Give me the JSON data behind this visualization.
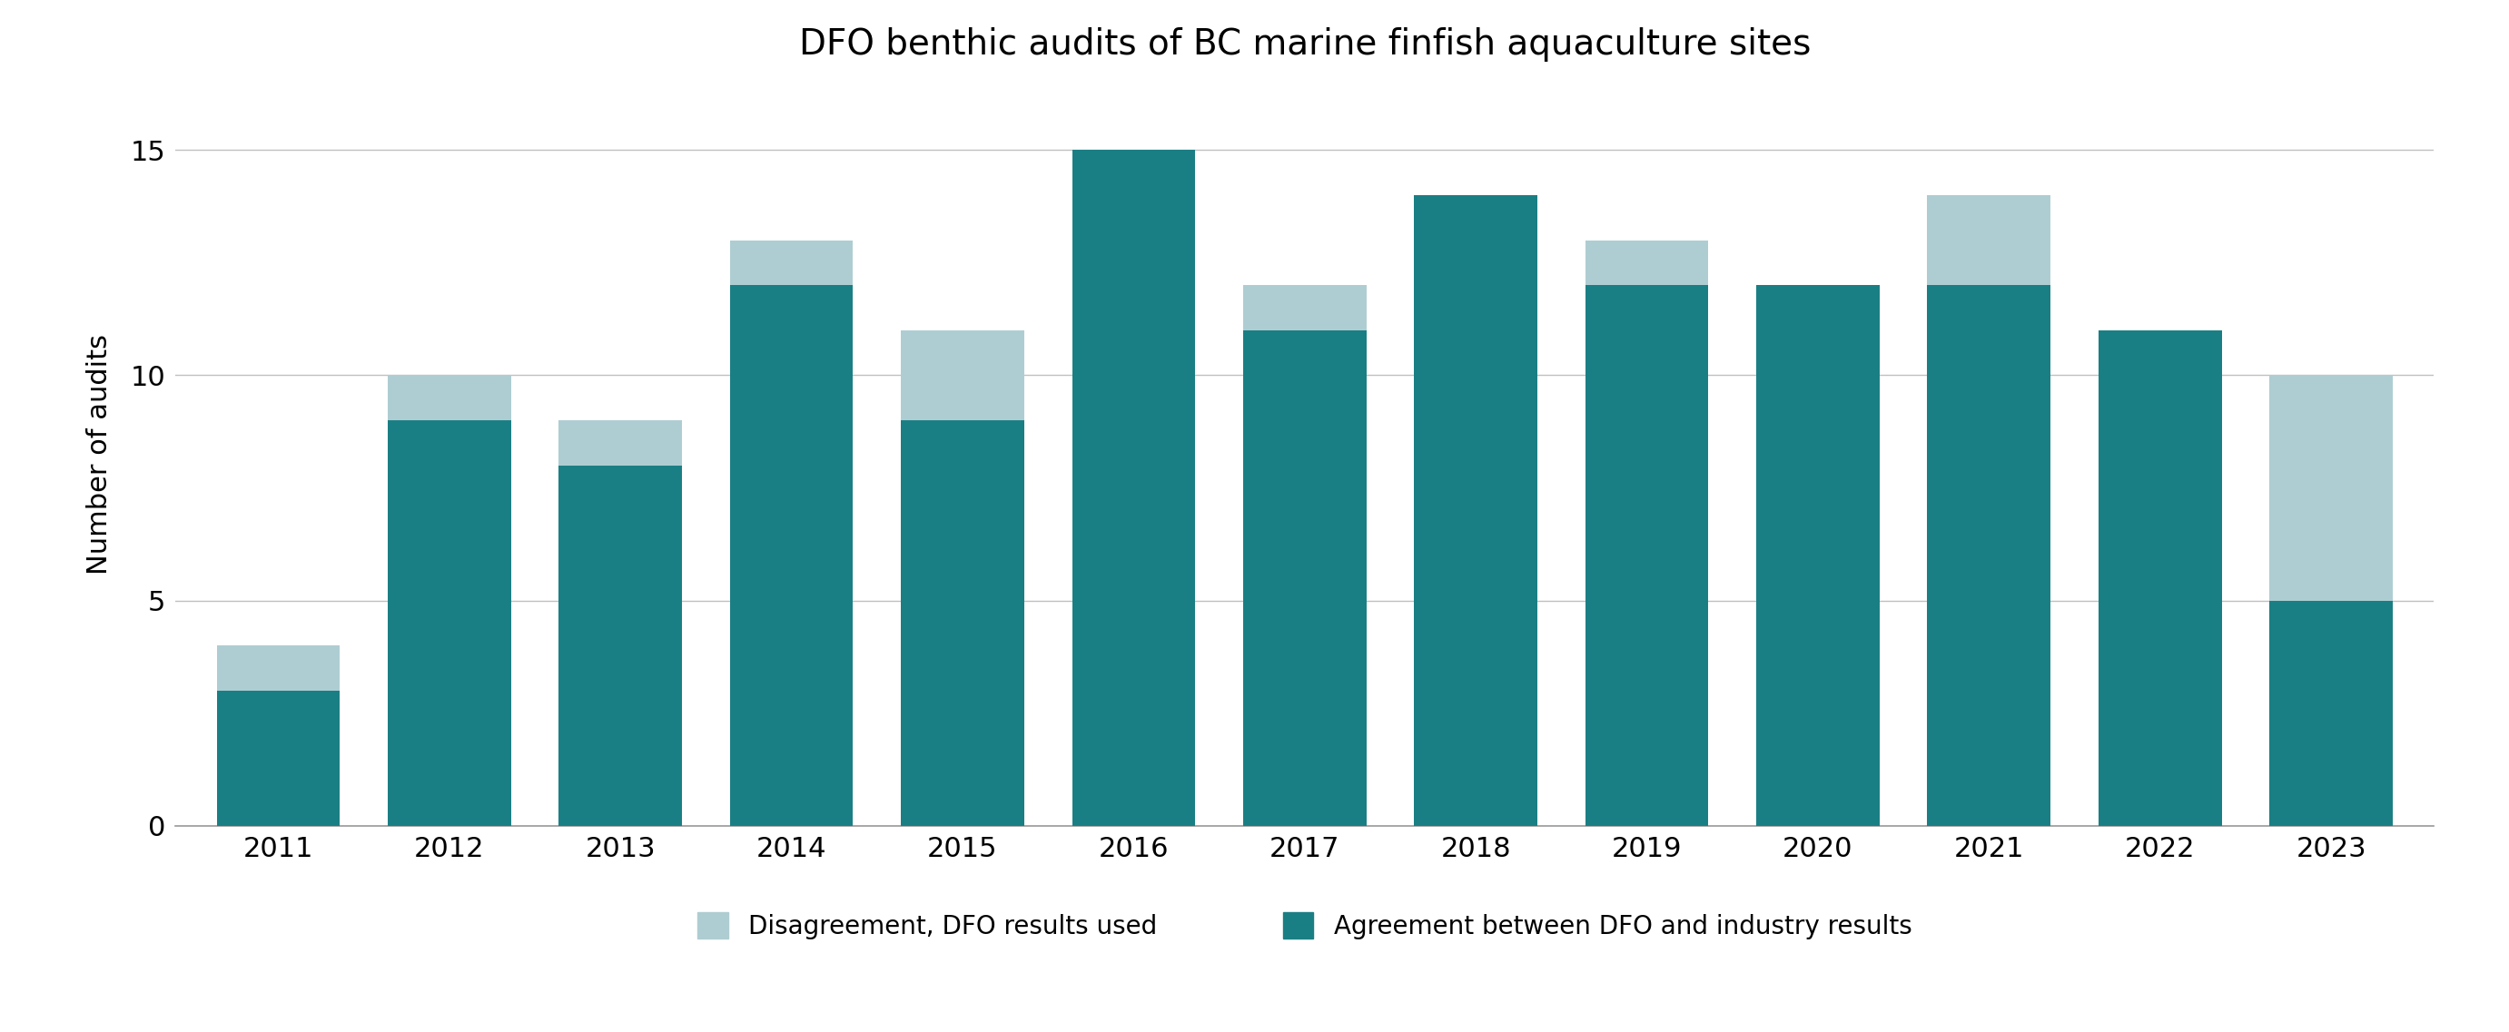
{
  "title": "DFO benthic audits of BC marine finfish aquaculture sites",
  "ylabel": "Number of audits",
  "years": [
    2011,
    2012,
    2013,
    2014,
    2015,
    2016,
    2017,
    2018,
    2019,
    2020,
    2021,
    2022,
    2023
  ],
  "agreement": [
    3,
    9,
    8,
    12,
    9,
    15,
    11,
    14,
    12,
    12,
    12,
    11,
    5
  ],
  "disagreement": [
    1,
    1,
    1,
    1,
    2,
    0,
    1,
    0,
    1,
    0,
    2,
    0,
    5
  ],
  "teal_color": "#1a7f84",
  "light_blue_color": "#aecdd2",
  "background_color": "#ffffff",
  "ylim": [
    0,
    16.5
  ],
  "yticks": [
    0,
    5,
    10,
    15
  ],
  "title_fontsize": 28,
  "label_fontsize": 22,
  "tick_fontsize": 22,
  "legend_fontsize": 20,
  "legend_label_agreement": "Agreement between DFO and industry results",
  "legend_label_disagreement": "Disagreement, DFO results used",
  "bar_width": 0.72,
  "grid_color": "#c0c0c0",
  "spine_color": "#999999"
}
